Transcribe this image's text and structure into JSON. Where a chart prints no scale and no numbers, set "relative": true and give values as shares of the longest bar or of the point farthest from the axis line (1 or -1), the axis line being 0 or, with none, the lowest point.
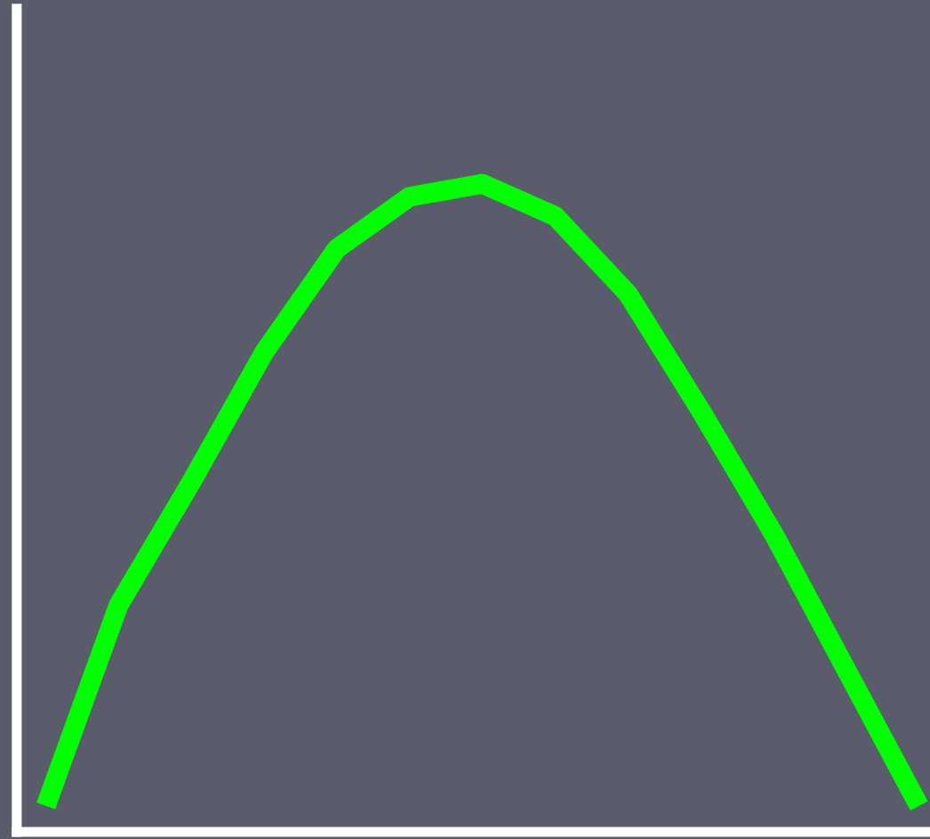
{
  "chart_data": {
    "type": "line",
    "relative": true,
    "categories": [
      null,
      null,
      null,
      null,
      null,
      null,
      null,
      null,
      null,
      null,
      null,
      null,
      null
    ],
    "series": [
      {
        "color": "#00ff00",
        "values": [
          0.04,
          0.35,
          0.54,
          0.74,
          0.9,
          0.98,
          1,
          0.95,
          0.83,
          0.65,
          0.46,
          0.25,
          0.04
        ]
      }
    ]
  }
}
